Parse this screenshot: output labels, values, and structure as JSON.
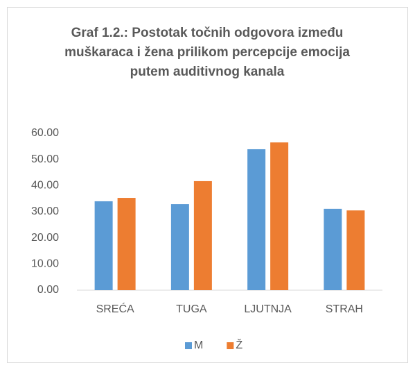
{
  "chart_data": {
    "type": "bar",
    "title": "Graf 1.2.: Postotak točnih odgovora između muškaraca i žena prilikom percepcije emocija putem auditivnog kanala",
    "categories": [
      "SREĆA",
      "TUGA",
      "LJUTNJA",
      "STRAH"
    ],
    "series": [
      {
        "name": "M",
        "color": "#5b9bd5",
        "values": [
          34.0,
          32.9,
          53.9,
          31.1
        ]
      },
      {
        "name": "Ž",
        "color": "#ed7d31",
        "values": [
          35.3,
          41.7,
          56.5,
          30.5
        ]
      }
    ],
    "ylim": [
      0,
      60
    ],
    "yticks": [
      {
        "value": 0,
        "label": "0.00"
      },
      {
        "value": 10,
        "label": "10.00"
      },
      {
        "value": 20,
        "label": "20.00"
      },
      {
        "value": 30,
        "label": "30.00"
      },
      {
        "value": 40,
        "label": "40.00"
      },
      {
        "value": 50,
        "label": "50.00"
      },
      {
        "value": 60,
        "label": "60.00"
      }
    ],
    "grid": false,
    "legend": "bottom"
  }
}
